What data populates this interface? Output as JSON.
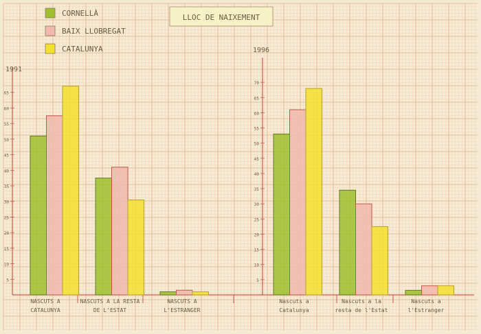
{
  "title": "LLOC DE NAIXEMENT",
  "legend": [
    {
      "label": "CORNELLÀ",
      "color": "#9fbf2f"
    },
    {
      "label": "BAIX LLOBREGAT",
      "color": "#f1b8ad"
    },
    {
      "label": "CATALUNYA",
      "color": "#f3e12f"
    }
  ],
  "colors": {
    "paper": "#f6ecd6",
    "grid_minor": "#efd2b4",
    "grid_major": "#e2b08e",
    "axis": "#c85a47",
    "ink": "#6a5a3e"
  },
  "chart_data": [
    {
      "type": "bar",
      "title": "LLOC DE NAIXEMENT",
      "ylabel": "1991",
      "ylim": [
        0,
        70
      ],
      "yticks": [
        "5",
        "10",
        "15",
        "20",
        "25",
        "30",
        "35",
        "40",
        "45",
        "50",
        "55",
        "60",
        "65"
      ],
      "categories": [
        {
          "line1": "NASCUTS A",
          "line2": "CATALUNYA"
        },
        {
          "line1": "NASCUTS A LA RESTA",
          "line2": "DE L'ESTAT"
        },
        {
          "line1": "NASCUTS A",
          "line2": "L'ESTRANGER"
        }
      ],
      "series": [
        {
          "name": "CORNELLÀ",
          "values": [
            51,
            37.5,
            1
          ]
        },
        {
          "name": "BAIX LLOBREGAT",
          "values": [
            57.5,
            41,
            1.5
          ]
        },
        {
          "name": "CATALUNYA",
          "values": [
            67,
            30.5,
            1
          ]
        }
      ]
    },
    {
      "type": "bar",
      "ylabel": "1996",
      "ylim": [
        0,
        75
      ],
      "yticks": [
        "5",
        "10",
        "15",
        "20",
        "25",
        "30",
        "35",
        "40",
        "45",
        "50",
        "55",
        "60",
        "65",
        "70"
      ],
      "categories": [
        {
          "line1": "Nascuts a",
          "line2": "Catalunya"
        },
        {
          "line1": "Nascuts a la",
          "line2": "resta de l'Estat"
        },
        {
          "line1": "Nascuts a",
          "line2": "l'Estranger"
        }
      ],
      "series": [
        {
          "name": "CORNELLÀ",
          "values": [
            53,
            34.5,
            1.5
          ]
        },
        {
          "name": "BAIX LLOBREGAT",
          "values": [
            61,
            30,
            3
          ]
        },
        {
          "name": "CATALUNYA",
          "values": [
            68,
            22.5,
            3
          ]
        }
      ]
    }
  ]
}
